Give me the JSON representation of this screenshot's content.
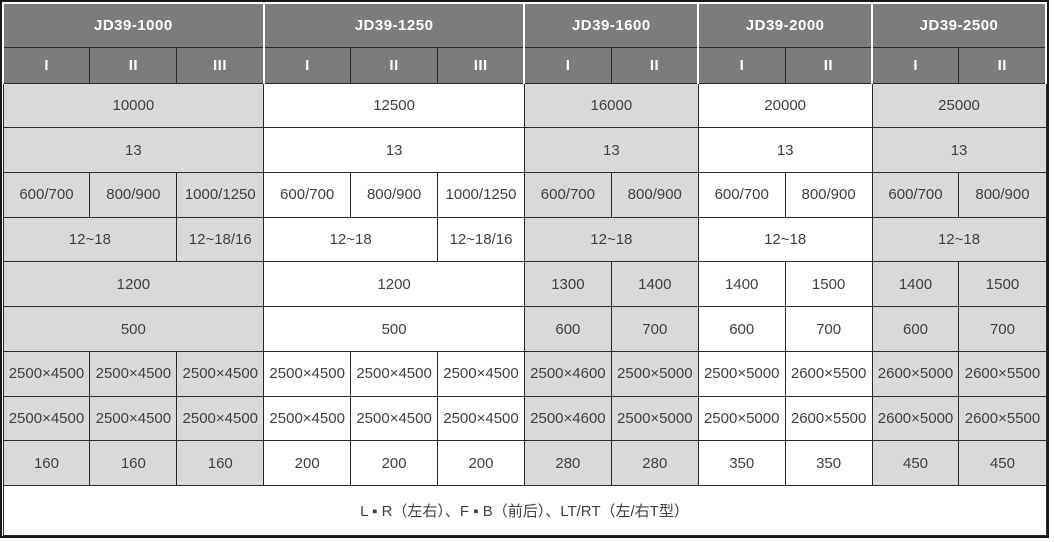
{
  "colors": {
    "header_bg": "#7c7c7c",
    "header_text": "#ffffff",
    "shaded_cell_bg": "#d9d9d9",
    "cell_bg": "#ffffff",
    "border": "#2a2a2a",
    "text": "#404040"
  },
  "table": {
    "groups": [
      {
        "label": "JD39-1000",
        "sub": [
          "I",
          "II",
          "III"
        ],
        "shaded": true
      },
      {
        "label": "JD39-1250",
        "sub": [
          "I",
          "II",
          "III"
        ],
        "shaded": false
      },
      {
        "label": "JD39-1600",
        "sub": [
          "I",
          "II"
        ],
        "shaded": true
      },
      {
        "label": "JD39-2000",
        "sub": [
          "I",
          "II"
        ],
        "shaded": false
      },
      {
        "label": "JD39-2500",
        "sub": [
          "I",
          "II"
        ],
        "shaded": true
      }
    ],
    "rows": [
      [
        [
          "10000",
          3
        ],
        [
          "12500",
          3
        ],
        [
          "16000",
          2
        ],
        [
          "20000",
          2
        ],
        [
          "25000",
          2
        ]
      ],
      [
        [
          "13",
          3
        ],
        [
          "13",
          3
        ],
        [
          "13",
          2
        ],
        [
          "13",
          2
        ],
        [
          "13",
          2
        ]
      ],
      [
        [
          "600/700",
          1
        ],
        [
          "800/900",
          1
        ],
        [
          "1000/1250",
          1
        ],
        [
          "600/700",
          1
        ],
        [
          "800/900",
          1
        ],
        [
          "1000/1250",
          1
        ],
        [
          "600/700",
          1
        ],
        [
          "800/900",
          1
        ],
        [
          "600/700",
          1
        ],
        [
          "800/900",
          1
        ],
        [
          "600/700",
          1
        ],
        [
          "800/900",
          1
        ]
      ],
      [
        [
          "12~18",
          2
        ],
        [
          "12~18/16",
          1
        ],
        [
          "12~18",
          2
        ],
        [
          "12~18/16",
          1
        ],
        [
          "12~18",
          2
        ],
        [
          "12~18",
          2
        ],
        [
          "12~18",
          2
        ]
      ],
      [
        [
          "1200",
          3
        ],
        [
          "1200",
          3
        ],
        [
          "1300",
          1
        ],
        [
          "1400",
          1
        ],
        [
          "1400",
          1
        ],
        [
          "1500",
          1
        ],
        [
          "1400",
          1
        ],
        [
          "1500",
          1
        ]
      ],
      [
        [
          "500",
          3
        ],
        [
          "500",
          3
        ],
        [
          "600",
          1
        ],
        [
          "700",
          1
        ],
        [
          "600",
          1
        ],
        [
          "700",
          1
        ],
        [
          "600",
          1
        ],
        [
          "700",
          1
        ]
      ],
      [
        [
          "2500×4500",
          1
        ],
        [
          "2500×4500",
          1
        ],
        [
          "2500×4500",
          1
        ],
        [
          "2500×4500",
          1
        ],
        [
          "2500×4500",
          1
        ],
        [
          "2500×4500",
          1
        ],
        [
          "2500×4600",
          1
        ],
        [
          "2500×5000",
          1
        ],
        [
          "2500×5000",
          1
        ],
        [
          "2600×5500",
          1
        ],
        [
          "2600×5000",
          1
        ],
        [
          "2600×5500",
          1
        ]
      ],
      [
        [
          "2500×4500",
          1
        ],
        [
          "2500×4500",
          1
        ],
        [
          "2500×4500",
          1
        ],
        [
          "2500×4500",
          1
        ],
        [
          "2500×4500",
          1
        ],
        [
          "2500×4500",
          1
        ],
        [
          "2500×4600",
          1
        ],
        [
          "2500×5000",
          1
        ],
        [
          "2500×5000",
          1
        ],
        [
          "2600×5500",
          1
        ],
        [
          "2600×5000",
          1
        ],
        [
          "2600×5500",
          1
        ]
      ],
      [
        [
          "160",
          1
        ],
        [
          "160",
          1
        ],
        [
          "160",
          1
        ],
        [
          "200",
          1
        ],
        [
          "200",
          1
        ],
        [
          "200",
          1
        ],
        [
          "280",
          1
        ],
        [
          "280",
          1
        ],
        [
          "350",
          1
        ],
        [
          "350",
          1
        ],
        [
          "450",
          1
        ],
        [
          "450",
          1
        ]
      ]
    ],
    "footer": "L ▪ R（左右）、F ▪ B（前后）、LT/RT（左/右T型）"
  }
}
